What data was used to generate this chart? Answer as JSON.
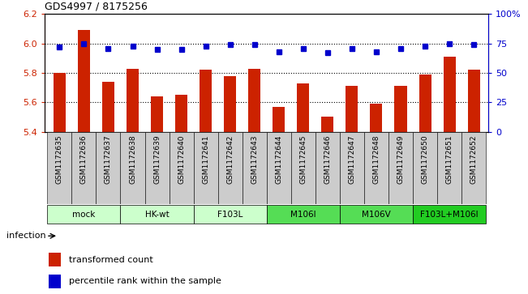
{
  "title": "GDS4997 / 8175256",
  "samples": [
    "GSM1172635",
    "GSM1172636",
    "GSM1172637",
    "GSM1172638",
    "GSM1172639",
    "GSM1172640",
    "GSM1172641",
    "GSM1172642",
    "GSM1172643",
    "GSM1172644",
    "GSM1172645",
    "GSM1172646",
    "GSM1172647",
    "GSM1172648",
    "GSM1172649",
    "GSM1172650",
    "GSM1172651",
    "GSM1172652"
  ],
  "bar_values": [
    5.8,
    6.09,
    5.74,
    5.83,
    5.64,
    5.65,
    5.82,
    5.78,
    5.83,
    5.57,
    5.73,
    5.5,
    5.71,
    5.59,
    5.71,
    5.79,
    5.91,
    5.82
  ],
  "percentile_values": [
    72,
    75,
    71,
    73,
    70,
    70,
    73,
    74,
    74,
    68,
    71,
    67,
    71,
    68,
    71,
    73,
    75,
    74
  ],
  "ylim_left": [
    5.4,
    6.2
  ],
  "ylim_right": [
    0,
    100
  ],
  "yticks_left": [
    5.4,
    5.6,
    5.8,
    6.0,
    6.2
  ],
  "yticks_right": [
    0,
    25,
    50,
    75,
    100
  ],
  "ytick_labels_right": [
    "0",
    "25",
    "50",
    "75",
    "100%"
  ],
  "bar_color": "#cc2200",
  "percentile_color": "#0000cc",
  "grid_color": "#000000",
  "bar_width": 0.5,
  "groups": [
    {
      "label": "mock",
      "start": 0,
      "end": 2,
      "color": "#ccffcc"
    },
    {
      "label": "HK-wt",
      "start": 3,
      "end": 5,
      "color": "#ccffcc"
    },
    {
      "label": "F103L",
      "start": 6,
      "end": 8,
      "color": "#ccffcc"
    },
    {
      "label": "M106I",
      "start": 9,
      "end": 11,
      "color": "#55dd55"
    },
    {
      "label": "M106V",
      "start": 12,
      "end": 14,
      "color": "#55dd55"
    },
    {
      "label": "F103L+M106I",
      "start": 15,
      "end": 17,
      "color": "#22cc22"
    }
  ],
  "xtick_bg_color": "#cccccc",
  "infection_label": "infection",
  "legend_bar_label": "transformed count",
  "legend_pct_label": "percentile rank within the sample",
  "left_axis_color": "#cc2200",
  "right_axis_color": "#0000cc"
}
